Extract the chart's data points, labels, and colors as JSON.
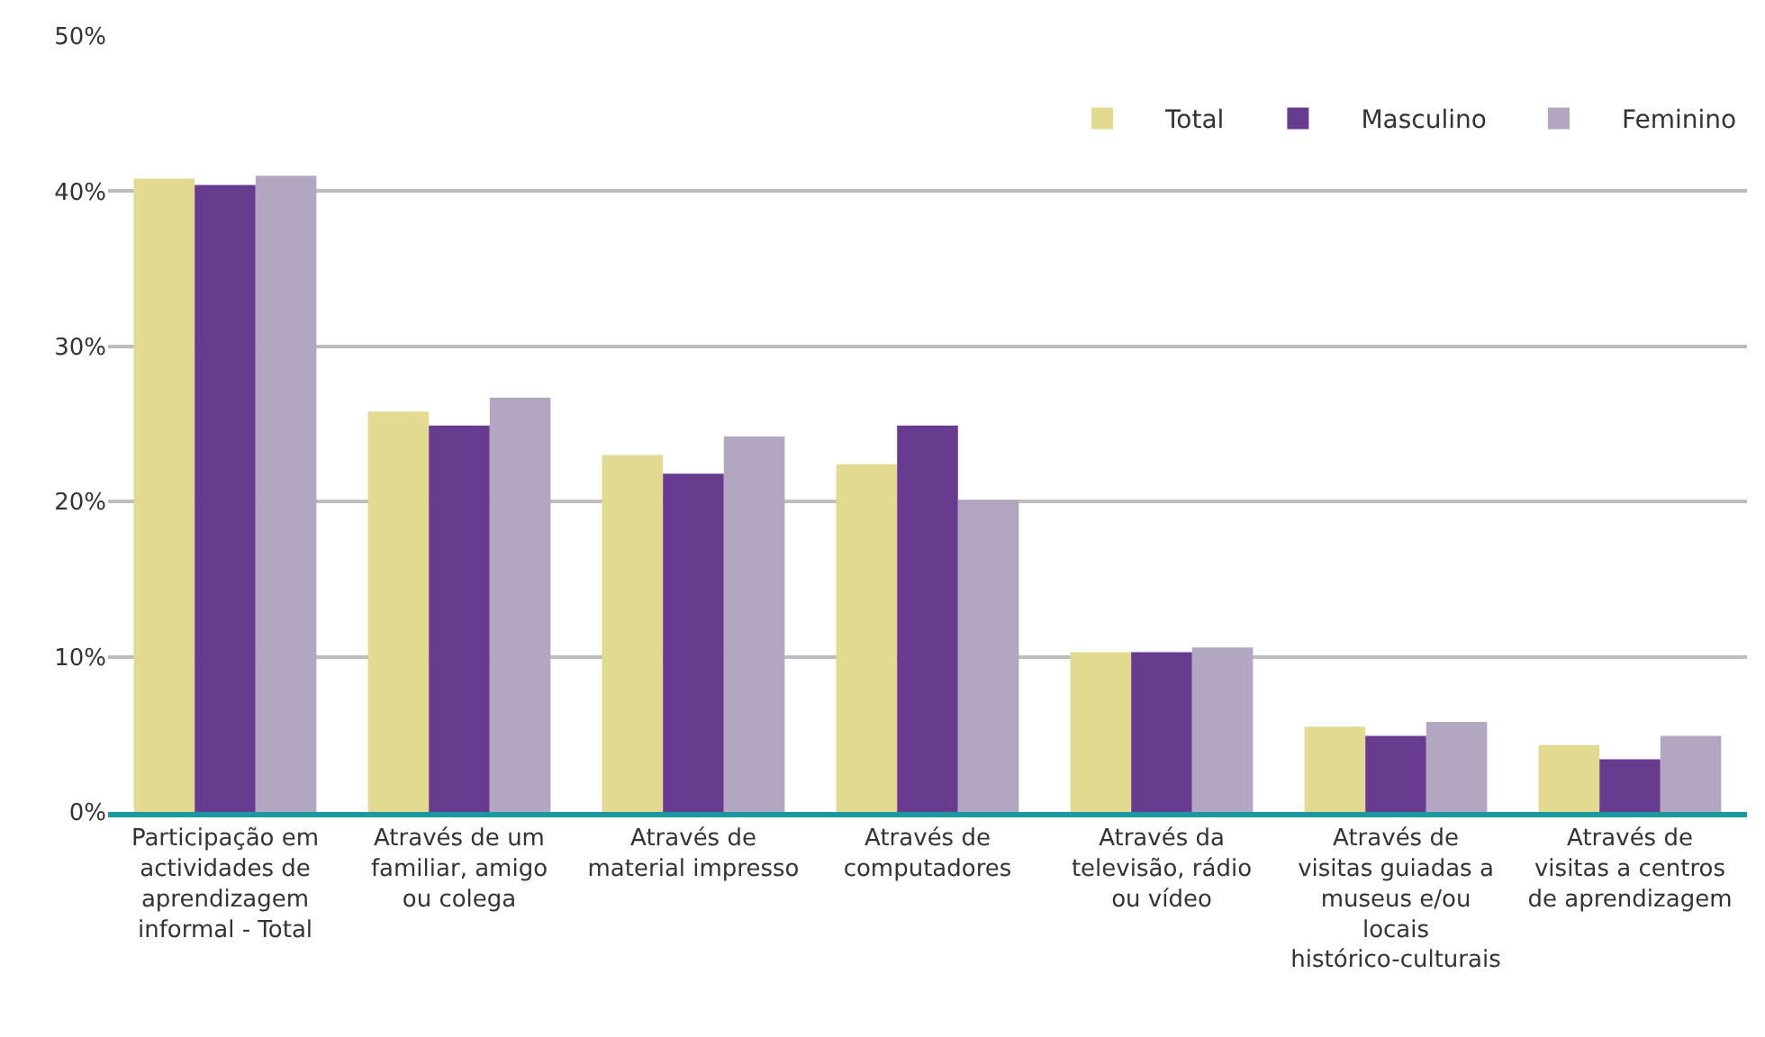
{
  "chart_data": {
    "type": "bar",
    "categories": [
      "Participação em actividades de aprendizagem informal - Total",
      "Através de um familiar, amigo ou colega",
      "Através de material impresso",
      "Através de computadores",
      "Através da televisão, rádio ou vídeo",
      "Através de visitas guiadas a museus e/ou locais histórico-culturais",
      "Através de visitas a centros de aprendizagem"
    ],
    "series": [
      {
        "name": "Total",
        "color": "#e2da91",
        "values": [
          40.8,
          25.8,
          23.0,
          22.4,
          10.3,
          5.5,
          4.3
        ]
      },
      {
        "name": "Masculino",
        "color": "#673b8f",
        "values": [
          40.4,
          24.9,
          21.8,
          24.9,
          10.3,
          4.9,
          3.4
        ]
      },
      {
        "name": "Feminino",
        "color": "#b3a6c1",
        "values": [
          41.0,
          26.7,
          24.2,
          20.1,
          10.6,
          5.8,
          4.9
        ]
      }
    ],
    "ylim": [
      0,
      50
    ],
    "yticks": [
      {
        "value": 0,
        "label": "0%"
      },
      {
        "value": 10,
        "label": "10%"
      },
      {
        "value": 20,
        "label": "20%"
      },
      {
        "value": 30,
        "label": "30%"
      },
      {
        "value": 40,
        "label": "40%"
      },
      {
        "value": 50,
        "label": "50%"
      }
    ],
    "grid": "y",
    "legend": "top right"
  }
}
